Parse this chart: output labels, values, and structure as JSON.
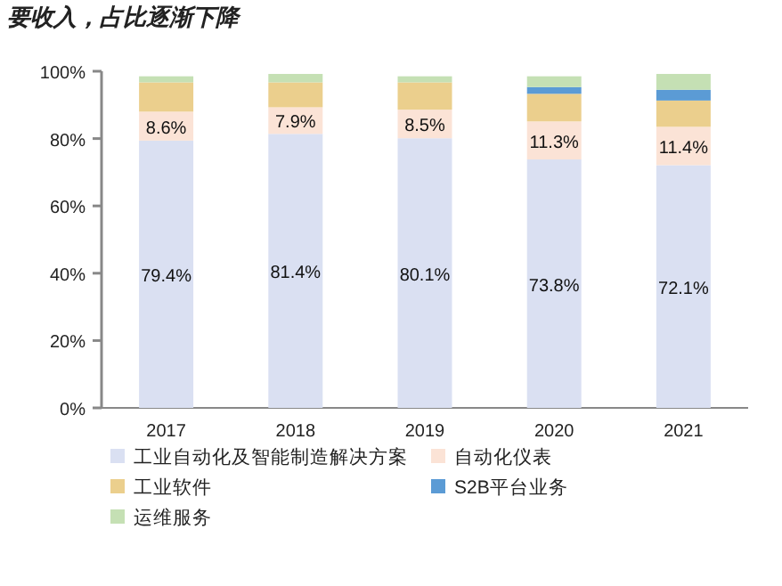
{
  "chart_data": {
    "type": "bar",
    "title": "要收入，占比逐渐下降",
    "categories": [
      "2017",
      "2018",
      "2019",
      "2020",
      "2021"
    ],
    "stacked": true,
    "ylim": [
      0,
      100
    ],
    "yticks": [
      {
        "value": 0,
        "label": "0%"
      },
      {
        "value": 20,
        "label": "20%"
      },
      {
        "value": 40,
        "label": "40%"
      },
      {
        "value": 60,
        "label": "60%"
      },
      {
        "value": 80,
        "label": "80%"
      },
      {
        "value": 100,
        "label": "100%"
      }
    ],
    "grid": false,
    "legend": "bottom",
    "series": [
      {
        "name": "工业自动化及智能制造解决方案",
        "color": "#dae0f2",
        "values": [
          79.4,
          81.4,
          80.1,
          73.8,
          72.1
        ],
        "value_labels": [
          "79.4%",
          "81.4%",
          "80.1%",
          "73.8%",
          "72.1%"
        ]
      },
      {
        "name": "自动化仪表",
        "color": "#fbe3d6",
        "values": [
          8.6,
          7.9,
          8.5,
          11.3,
          11.4
        ],
        "value_labels": [
          "8.6%",
          "7.9%",
          "8.5%",
          "11.3%",
          "11.4%"
        ]
      },
      {
        "name": "工业软件",
        "color": "#ebcf8d",
        "values": [
          8.7,
          7.4,
          8.1,
          8.2,
          7.8
        ]
      },
      {
        "name": "S2B平台业务",
        "color": "#5b9bd5",
        "values": [
          null,
          null,
          null,
          2.0,
          3.2
        ]
      },
      {
        "name": "运维服务",
        "color": "#c5e0b4",
        "values": [
          1.8,
          2.5,
          1.8,
          3.2,
          4.7
        ]
      }
    ]
  }
}
